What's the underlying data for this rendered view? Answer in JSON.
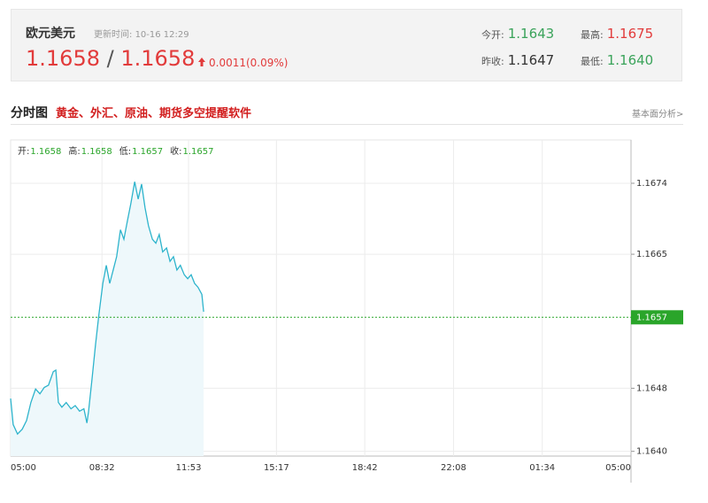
{
  "header": {
    "title": "欧元美元",
    "update_label": "更新时间:",
    "update_time": "10-16 12:29",
    "bid": "1.1658",
    "separator": "/",
    "ask": "1.1658",
    "change": "0.0011(0.09%)",
    "stats": [
      {
        "label": "今开:",
        "value": "1.1643"
      },
      {
        "label": "最高:",
        "value": "1.1675"
      },
      {
        "label": "昨收:",
        "value": "1.1647"
      },
      {
        "label": "最低:",
        "value": "1.1640"
      }
    ]
  },
  "section": {
    "title": "分时图",
    "promo": "黄金、外汇、原油、期货多空提醒软件",
    "link": "基本面分析>"
  },
  "chart_data": {
    "type": "line",
    "color": "#2eb4cc",
    "fill": "#eef8fb",
    "grid": true,
    "ohlc": [
      {
        "label": "开:",
        "value": "1.1658"
      },
      {
        "label": "高:",
        "value": "1.1658"
      },
      {
        "label": "低:",
        "value": "1.1657"
      },
      {
        "label": "收:",
        "value": "1.1657"
      }
    ],
    "x": [
      0,
      6,
      16,
      27,
      37,
      47,
      58,
      68,
      78,
      88,
      99,
      105,
      111,
      119,
      129,
      140,
      150,
      160,
      170,
      177,
      181,
      189,
      197,
      205,
      214,
      222,
      230,
      238,
      246,
      255,
      263,
      271,
      279,
      288,
      296,
      304,
      312,
      320,
      329,
      337,
      345,
      353,
      362,
      370,
      378,
      386,
      394,
      403,
      411,
      419,
      427,
      435,
      444,
      448
    ],
    "values": [
      1.16467,
      1.16434,
      1.16422,
      1.16428,
      1.16439,
      1.16462,
      1.16479,
      1.16473,
      1.16481,
      1.16484,
      1.16501,
      1.16503,
      1.16462,
      1.16456,
      1.16462,
      1.16454,
      1.16458,
      1.16451,
      1.16454,
      1.16436,
      1.16451,
      1.16492,
      1.16535,
      1.16574,
      1.16613,
      1.16636,
      1.16613,
      1.1663,
      1.16647,
      1.16681,
      1.16669,
      1.16692,
      1.16714,
      1.16742,
      1.1672,
      1.16739,
      1.16709,
      1.16686,
      1.16669,
      1.16664,
      1.16675,
      1.16653,
      1.16658,
      1.16641,
      1.16647,
      1.1663,
      1.16636,
      1.16624,
      1.16619,
      1.16624,
      1.16613,
      1.16608,
      1.16599,
      1.16577
    ],
    "xlim": [
      0,
      1440
    ],
    "xticks": [
      {
        "value": 0,
        "label": "05:00"
      },
      {
        "value": 212,
        "label": "08:32"
      },
      {
        "value": 413,
        "label": "11:53"
      },
      {
        "value": 617,
        "label": "15:17"
      },
      {
        "value": 822,
        "label": "18:42"
      },
      {
        "value": 1028,
        "label": "22:08"
      },
      {
        "value": 1234,
        "label": "01:34"
      },
      {
        "value": 1440,
        "label": "05:00"
      }
    ],
    "ylim": [
      1.16394,
      1.16795
    ],
    "yticks": [
      {
        "value": 1.164,
        "label": "1.1640"
      },
      1.1648,
      1.1665,
      1.1674
    ],
    "reference_line": {
      "value": 1.1657,
      "color": "#2aa52a"
    }
  }
}
